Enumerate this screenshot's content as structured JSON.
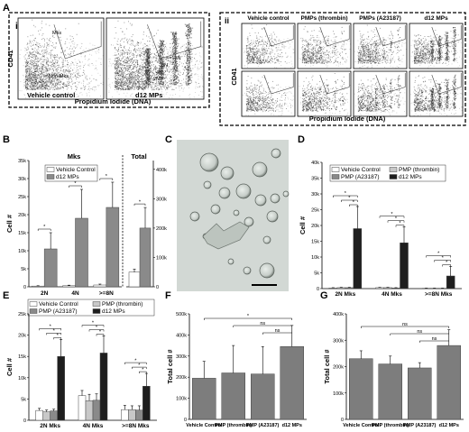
{
  "panel_letters": {
    "A": "A",
    "B": "B",
    "C": "C",
    "D": "D",
    "E": "E",
    "F": "F",
    "G": "G"
  },
  "panel_A": {
    "sub_i": "i",
    "sub_ii": "ii",
    "ylabel": "CD41",
    "xlabel": "Propidium Iodide (DNA)",
    "left_plots": [
      {
        "label": "Vehicle control",
        "gate_mks": "Mks",
        "gate_nonmks": "Non-Mks"
      },
      {
        "label": "d12 MPs",
        "ploidy": [
          "2N",
          "4N",
          "8N",
          ">=16N"
        ]
      }
    ],
    "right_columns": [
      "Vehicle control",
      "PMPs (thrombin)",
      "PMPs (A23187)",
      "d12 MPs"
    ]
  },
  "significance_mark": "*",
  "ns_mark": "ns",
  "scale_bar": "",
  "colors": {
    "white_bar": "#ffffff",
    "light_bar": "#c8c8c8",
    "mid_bar": "#8a8a8a",
    "dark_bar": "#1e1e1e",
    "f_bar": "#7d7d7d"
  },
  "chart_data": [
    {
      "panel": "B",
      "type": "bar",
      "title_left": "Mks",
      "title_right": "Total",
      "ylabel": "Cell #",
      "categories": [
        "2N",
        "4N",
        ">=8N"
      ],
      "series": [
        {
          "name": "Vehicle Control",
          "values": [
            200,
            300,
            500
          ],
          "errors": [
            100,
            150,
            250
          ]
        },
        {
          "name": "d12 MPs",
          "values": [
            10500,
            19000,
            22000
          ],
          "errors": [
            4500,
            8000,
            7000
          ]
        }
      ],
      "yticks": [
        0,
        5000,
        10000,
        15000,
        20000,
        25000,
        30000,
        35000
      ],
      "ytick_labels": [
        "0",
        "5k",
        "10k",
        "15k",
        "20k",
        "25k",
        "30k",
        "35k"
      ],
      "ylim": [
        0,
        35000
      ],
      "total": {
        "series": [
          {
            "name": "Vehicle Control",
            "value": 50000,
            "error": 10000
          },
          {
            "name": "d12 MPs",
            "value": 200000,
            "error": 70000
          }
        ],
        "yticks": [
          0,
          100000,
          200000,
          300000,
          400000
        ],
        "ytick_labels": [
          "0",
          "100k",
          "200k",
          "300k",
          "400k"
        ],
        "ylim": [
          0,
          430000
        ]
      }
    },
    {
      "panel": "D",
      "type": "bar",
      "ylabel": "Cell #",
      "categories": [
        "2N Mks",
        "4N Mks",
        ">=8N Mks"
      ],
      "series": [
        {
          "name": "Vehicle Control",
          "values": [
            200,
            300,
            100
          ],
          "errors": [
            100,
            100,
            50
          ]
        },
        {
          "name": "PMP (thrombin)",
          "values": [
            300,
            300,
            100
          ],
          "errors": [
            100,
            100,
            50
          ]
        },
        {
          "name": "PMP (A23187)",
          "values": [
            300,
            200,
            100
          ],
          "errors": [
            100,
            100,
            50
          ]
        },
        {
          "name": "d12 MPs",
          "values": [
            19000,
            14500,
            4000
          ],
          "errors": [
            7000,
            5000,
            3000
          ]
        }
      ],
      "yticks": [
        0,
        5000,
        10000,
        15000,
        20000,
        25000,
        30000,
        35000,
        40000
      ],
      "ytick_labels": [
        "0",
        "5k",
        "10k",
        "15k",
        "20k",
        "25k",
        "30k",
        "35k",
        "40k"
      ],
      "ylim": [
        0,
        40000
      ]
    },
    {
      "panel": "E",
      "type": "bar",
      "ylabel": "Cell #",
      "categories": [
        "2N Mks",
        "4N Mks",
        ">=8N Mks"
      ],
      "series": [
        {
          "name": "Vehicle Control",
          "values": [
            2300,
            5800,
            2500
          ],
          "errors": [
            500,
            1200,
            1000
          ]
        },
        {
          "name": "PMP (thrombin)",
          "values": [
            2000,
            4600,
            2500
          ],
          "errors": [
            400,
            1500,
            900
          ]
        },
        {
          "name": "PMP (A23187)",
          "values": [
            2200,
            4700,
            2400
          ],
          "errors": [
            400,
            1500,
            1000
          ]
        },
        {
          "name": "d12 MPs",
          "values": [
            15000,
            15800,
            8000
          ],
          "errors": [
            4000,
            4000,
            3000
          ]
        }
      ],
      "yticks": [
        0,
        5000,
        10000,
        15000,
        20000,
        25000
      ],
      "ytick_labels": [
        "0",
        "5k",
        "10k",
        "15k",
        "20k",
        "25k"
      ],
      "ylim": [
        0,
        25000
      ]
    },
    {
      "panel": "F",
      "type": "bar",
      "ylabel": "Total cell #",
      "categories": [
        "Vehicle Control",
        "PMP (thrombin)",
        "PMP (A23187)",
        "d12 MPs"
      ],
      "values": [
        195000,
        220000,
        215000,
        345000
      ],
      "errors": [
        80000,
        130000,
        130000,
        100000
      ],
      "yticks": [
        0,
        100000,
        200000,
        300000,
        400000,
        500000
      ],
      "ytick_labels": [
        "0",
        "100k",
        "200k",
        "300k",
        "400k",
        "500k"
      ],
      "ylim": [
        0,
        500000
      ]
    },
    {
      "panel": "G",
      "type": "bar",
      "ylabel": "Total cell #",
      "categories": [
        "Vehicle Control",
        "PMP (thrombin)",
        "PMP (A23187)",
        "d12 MPs"
      ],
      "values": [
        230000,
        210000,
        195000,
        280000
      ],
      "errors": [
        30000,
        30000,
        20000,
        60000
      ],
      "yticks": [
        0,
        100000,
        200000,
        300000,
        400000
      ],
      "ytick_labels": [
        "0",
        "100k",
        "200k",
        "300k",
        "400k"
      ],
      "ylim": [
        0,
        400000
      ]
    }
  ]
}
